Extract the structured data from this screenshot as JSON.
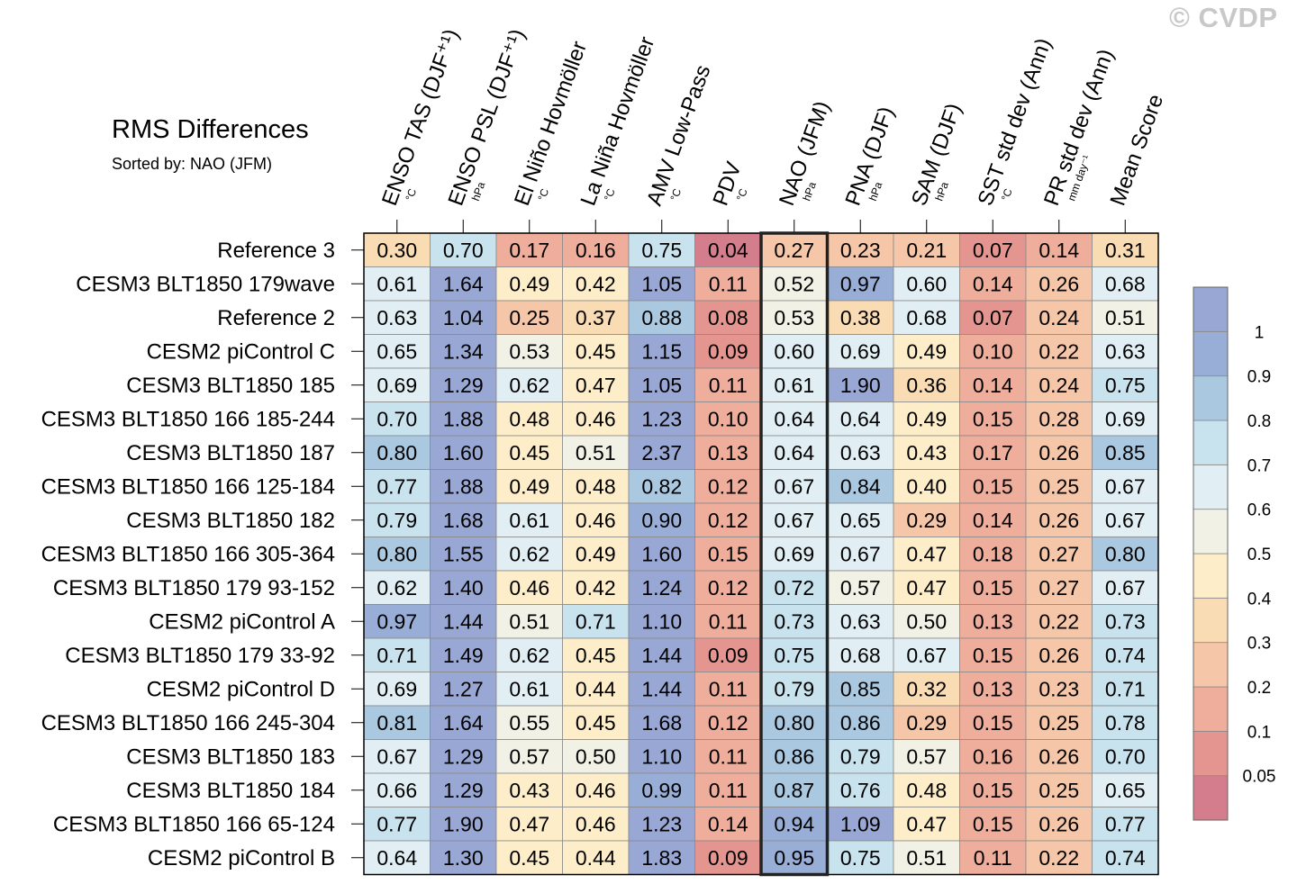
{
  "watermark": "© CVDP",
  "chart_data": {
    "type": "heatmap",
    "title": "RMS Differences",
    "subtitle": "Sorted by: NAO (JFM)",
    "columns": [
      {
        "name": "ENSO TAS (DJF⁺¹)",
        "unit": "°C"
      },
      {
        "name": "ENSO PSL (DJF⁺¹)",
        "unit": "hPa"
      },
      {
        "name": "El Niño Hovmöller",
        "unit": "°C"
      },
      {
        "name": "La Niña Hovmöller",
        "unit": "°C"
      },
      {
        "name": "AMV Low-Pass",
        "unit": "°C"
      },
      {
        "name": "PDV",
        "unit": "°C"
      },
      {
        "name": "NAO (JFM)",
        "unit": "hPa"
      },
      {
        "name": "PNA (DJF)",
        "unit": "hPa"
      },
      {
        "name": "SAM (DJF)",
        "unit": "hPa"
      },
      {
        "name": "SST std dev (Ann)",
        "unit": "°C"
      },
      {
        "name": "PR std dev (Ann)",
        "unit": "mm day⁻¹"
      },
      {
        "name": "Mean Score",
        "unit": ""
      }
    ],
    "highlighted_column": "NAO (JFM)",
    "rows": [
      {
        "name": "Reference 3",
        "values": [
          0.3,
          0.7,
          0.17,
          0.16,
          0.75,
          0.04,
          0.27,
          0.23,
          0.21,
          0.07,
          0.14,
          0.31
        ]
      },
      {
        "name": "CESM3 BLT1850 179wave",
        "values": [
          0.61,
          1.64,
          0.49,
          0.42,
          1.05,
          0.11,
          0.52,
          0.97,
          0.6,
          0.14,
          0.26,
          0.68
        ]
      },
      {
        "name": "Reference 2",
        "values": [
          0.63,
          1.04,
          0.25,
          0.37,
          0.88,
          0.08,
          0.53,
          0.38,
          0.68,
          0.07,
          0.24,
          0.51
        ]
      },
      {
        "name": "CESM2 piControl C",
        "values": [
          0.65,
          1.34,
          0.53,
          0.45,
          1.15,
          0.09,
          0.6,
          0.69,
          0.49,
          0.1,
          0.22,
          0.63
        ]
      },
      {
        "name": "CESM3 BLT1850 185",
        "values": [
          0.69,
          1.29,
          0.62,
          0.47,
          1.05,
          0.11,
          0.61,
          1.9,
          0.36,
          0.14,
          0.24,
          0.75
        ]
      },
      {
        "name": "CESM3 BLT1850 166 185-244",
        "values": [
          0.7,
          1.88,
          0.48,
          0.46,
          1.23,
          0.1,
          0.64,
          0.64,
          0.49,
          0.15,
          0.28,
          0.69
        ]
      },
      {
        "name": "CESM3 BLT1850 187",
        "values": [
          0.8,
          1.6,
          0.45,
          0.51,
          2.37,
          0.13,
          0.64,
          0.63,
          0.43,
          0.17,
          0.26,
          0.85
        ]
      },
      {
        "name": "CESM3 BLT1850 166 125-184",
        "values": [
          0.77,
          1.88,
          0.49,
          0.48,
          0.82,
          0.12,
          0.67,
          0.84,
          0.4,
          0.15,
          0.25,
          0.67
        ]
      },
      {
        "name": "CESM3 BLT1850 182",
        "values": [
          0.79,
          1.68,
          0.61,
          0.46,
          0.9,
          0.12,
          0.67,
          0.65,
          0.29,
          0.14,
          0.26,
          0.67
        ]
      },
      {
        "name": "CESM3 BLT1850 166 305-364",
        "values": [
          0.8,
          1.55,
          0.62,
          0.49,
          1.6,
          0.15,
          0.69,
          0.67,
          0.47,
          0.18,
          0.27,
          0.8
        ]
      },
      {
        "name": "CESM3 BLT1850 179 93-152",
        "values": [
          0.62,
          1.4,
          0.46,
          0.42,
          1.24,
          0.12,
          0.72,
          0.57,
          0.47,
          0.15,
          0.27,
          0.67
        ]
      },
      {
        "name": "CESM2 piControl A",
        "values": [
          0.97,
          1.44,
          0.51,
          0.71,
          1.1,
          0.11,
          0.73,
          0.63,
          0.5,
          0.13,
          0.22,
          0.73
        ]
      },
      {
        "name": "CESM3 BLT1850 179 33-92",
        "values": [
          0.71,
          1.49,
          0.62,
          0.45,
          1.44,
          0.09,
          0.75,
          0.68,
          0.67,
          0.15,
          0.26,
          0.74
        ]
      },
      {
        "name": "CESM2 piControl D",
        "values": [
          0.69,
          1.27,
          0.61,
          0.44,
          1.44,
          0.11,
          0.79,
          0.85,
          0.32,
          0.13,
          0.23,
          0.71
        ]
      },
      {
        "name": "CESM3 BLT1850 166 245-304",
        "values": [
          0.81,
          1.64,
          0.55,
          0.45,
          1.68,
          0.12,
          0.8,
          0.86,
          0.29,
          0.15,
          0.25,
          0.78
        ]
      },
      {
        "name": "CESM3 BLT1850 183",
        "values": [
          0.67,
          1.29,
          0.57,
          0.5,
          1.1,
          0.11,
          0.86,
          0.79,
          0.57,
          0.16,
          0.26,
          0.7
        ]
      },
      {
        "name": "CESM3 BLT1850 184",
        "values": [
          0.66,
          1.29,
          0.43,
          0.46,
          0.99,
          0.11,
          0.87,
          0.76,
          0.48,
          0.15,
          0.25,
          0.65
        ]
      },
      {
        "name": "CESM3 BLT1850 166 65-124",
        "values": [
          0.77,
          1.9,
          0.47,
          0.46,
          1.23,
          0.14,
          0.94,
          1.09,
          0.47,
          0.15,
          0.26,
          0.77
        ]
      },
      {
        "name": "CESM2 piControl B",
        "values": [
          0.64,
          1.3,
          0.45,
          0.44,
          1.83,
          0.09,
          0.95,
          0.75,
          0.51,
          0.11,
          0.22,
          0.74
        ]
      }
    ],
    "colorbar": {
      "levels": [
        0.05,
        0.1,
        0.2,
        0.3,
        0.4,
        0.5,
        0.6,
        0.7,
        0.8,
        0.9,
        1
      ],
      "labels": [
        "0.05",
        "0.1",
        "0.2",
        "0.3",
        "0.4",
        "0.5",
        "0.6",
        "0.7",
        "0.8",
        "0.9",
        "1"
      ],
      "colors": [
        "#d47d8c",
        "#e5958f",
        "#efad9b",
        "#f6c6a8",
        "#fadcb4",
        "#fdedc9",
        "#f2f1e6",
        "#e1eff4",
        "#c8e2ee",
        "#aac8e0",
        "#98aed6",
        "#98a7d3"
      ]
    }
  }
}
